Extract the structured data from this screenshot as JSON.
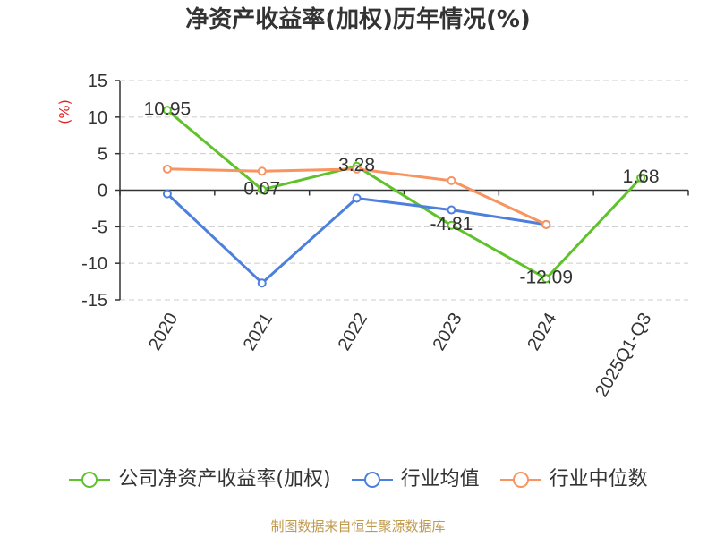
{
  "chart_data": {
    "type": "line",
    "title": "净资产收益率(加权)历年情况(%)",
    "xlabel": "",
    "ylabel": "(%)",
    "categories": [
      "2020",
      "2021",
      "2022",
      "2023",
      "2024",
      "2025Q1-Q3"
    ],
    "ylim": [
      -15,
      15
    ],
    "y_ticks": [
      15,
      10,
      5,
      0,
      -5,
      -10,
      -15
    ],
    "grid": true,
    "legend": "bottom",
    "series": [
      {
        "name": "公司净资产收益率(加权)",
        "color": "#5fc22b",
        "values": [
          10.95,
          0.07,
          3.28,
          -4.81,
          -12.09,
          1.68
        ],
        "show_labels": true
      },
      {
        "name": "行业均值",
        "color": "#4d7fdd",
        "values": [
          -0.5,
          -12.7,
          -1.1,
          -2.7,
          -4.7,
          null
        ],
        "show_labels": false
      },
      {
        "name": "行业中位数",
        "color": "#f89460",
        "values": [
          2.9,
          2.6,
          2.9,
          1.3,
          -4.7,
          null
        ],
        "show_labels": false
      }
    ]
  },
  "footer": {
    "source": "制图数据来自恒生聚源数据库"
  }
}
